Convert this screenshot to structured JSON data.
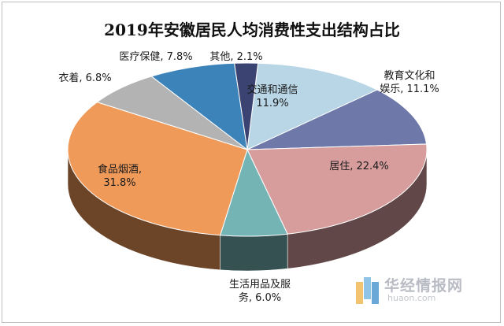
{
  "chart_data": {
    "type": "pie",
    "title": "2019年安徽居民人均消费性支出结构占比",
    "unit": "%",
    "slices": [
      {
        "name": "交通和通信",
        "value": 11.9,
        "label": [
          "交通和通信",
          "11.9%"
        ],
        "color": "#b9d6e6"
      },
      {
        "name": "教育文化和娱乐",
        "value": 11.1,
        "label": [
          "教育文化和",
          "娱乐, 11.1%"
        ],
        "color": "#6e79a9"
      },
      {
        "name": "居住",
        "value": 22.4,
        "label": [
          "居住, 22.4%"
        ],
        "color": "#d79d9d"
      },
      {
        "name": "生活用品及服务",
        "value": 6.0,
        "label": [
          "生活用品及服",
          "务, 6.0%"
        ],
        "color": "#75b4b5"
      },
      {
        "name": "食品烟酒",
        "value": 31.8,
        "label": [
          "食品烟酒,",
          "31.8%"
        ],
        "color": "#f09a5a"
      },
      {
        "name": "衣着",
        "value": 6.8,
        "label": [
          "衣着, 6.8%"
        ],
        "color": "#b3b3b3"
      },
      {
        "name": "医疗保健",
        "value": 7.8,
        "label": [
          "医疗保健, 7.8%"
        ],
        "color": "#3b83b9"
      },
      {
        "name": "其他",
        "value": 2.1,
        "label": [
          "其他, 2.1%"
        ],
        "color": "#3a4371"
      }
    ]
  },
  "watermark": {
    "name_cn": "华经情报网",
    "name_en": "huaon.com"
  }
}
